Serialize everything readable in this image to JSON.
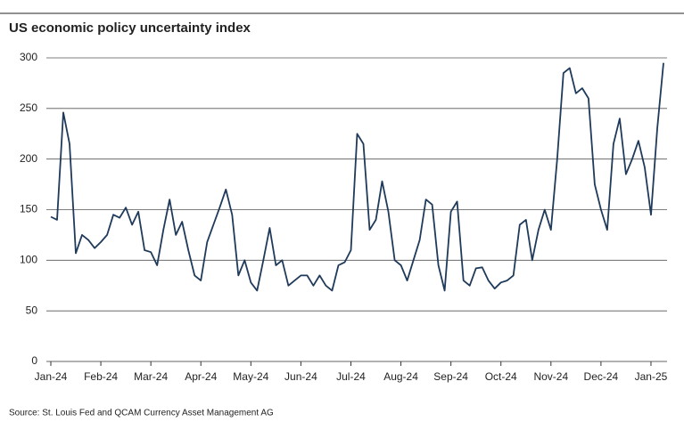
{
  "chart_data": {
    "type": "line",
    "title": "US economic policy uncertainty index",
    "source": "Source: St. Louis Fed and QCAM Currency Asset Management AG",
    "categories": [
      "Jan-24",
      null,
      null,
      null,
      null,
      null,
      null,
      null,
      "Feb-24",
      null,
      null,
      null,
      null,
      null,
      null,
      null,
      "Mar-24",
      null,
      null,
      null,
      null,
      null,
      null,
      null,
      "Apr-24",
      null,
      null,
      null,
      null,
      null,
      null,
      null,
      "May-24",
      null,
      null,
      null,
      null,
      null,
      null,
      null,
      "Jun-24",
      null,
      null,
      null,
      null,
      null,
      null,
      null,
      "Jul-24",
      null,
      null,
      null,
      null,
      null,
      null,
      null,
      "Aug-24",
      null,
      null,
      null,
      null,
      null,
      null,
      null,
      "Sep-24",
      null,
      null,
      null,
      null,
      null,
      null,
      null,
      "Oct-24",
      null,
      null,
      null,
      null,
      null,
      null,
      null,
      "Nov-24",
      null,
      null,
      null,
      null,
      null,
      null,
      null,
      "Dec-24",
      null,
      null,
      null,
      null,
      null,
      null,
      null,
      "Jan-25",
      null,
      null
    ],
    "values": [
      143,
      140,
      246,
      215,
      107,
      125,
      120,
      112,
      118,
      125,
      145,
      142,
      152,
      135,
      148,
      110,
      108,
      95,
      130,
      160,
      125,
      138,
      110,
      85,
      80,
      118,
      135,
      152,
      170,
      145,
      85,
      100,
      78,
      70,
      100,
      132,
      95,
      100,
      75,
      80,
      85,
      85,
      75,
      85,
      75,
      70,
      95,
      98,
      110,
      225,
      215,
      130,
      140,
      178,
      148,
      100,
      95,
      80,
      100,
      120,
      160,
      155,
      95,
      70,
      148,
      158,
      80,
      75,
      92,
      93,
      80,
      72,
      78,
      80,
      85,
      135,
      140,
      100,
      130,
      150,
      130,
      200,
      285,
      290,
      265,
      270,
      260,
      175,
      150,
      130,
      215,
      240,
      185,
      200,
      218,
      192,
      145,
      230,
      295
    ],
    "color": "#1f3a5a",
    "ylim": [
      0,
      300
    ],
    "yticks": [
      0,
      50,
      100,
      150,
      200,
      250,
      300
    ],
    "grid": true
  }
}
